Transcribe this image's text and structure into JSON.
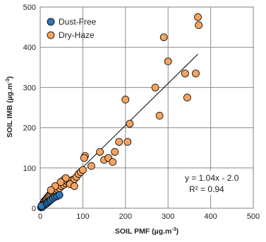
{
  "chart_data": {
    "type": "scatter",
    "xlabel": "SOIL PMF (µg.m",
    "xlabel_sup": "-3",
    "xlabel_end": ")",
    "ylabel": "SOIL IMB (µg.m",
    "ylabel_sup": "-3",
    "ylabel_end": ")",
    "xlim": [
      0,
      500
    ],
    "ylim": [
      0,
      500
    ],
    "xticks": [
      0,
      100,
      200,
      300,
      400,
      500
    ],
    "yticks": [
      0,
      100,
      200,
      300,
      400,
      500
    ],
    "grid": true,
    "legend_position": "top-left",
    "series": [
      {
        "name": "Dust-Free",
        "color": "#2E75B6",
        "points": [
          [
            2,
            2
          ],
          [
            4,
            4
          ],
          [
            6,
            5
          ],
          [
            8,
            7
          ],
          [
            10,
            9
          ],
          [
            12,
            10
          ],
          [
            5,
            3
          ],
          [
            3,
            6
          ],
          [
            15,
            12
          ],
          [
            18,
            15
          ],
          [
            22,
            18
          ],
          [
            25,
            21
          ],
          [
            30,
            25
          ],
          [
            35,
            28
          ],
          [
            40,
            30
          ],
          [
            45,
            33
          ]
        ]
      },
      {
        "name": "Dry-Haze",
        "color": "#F4A460",
        "points": [
          [
            3,
            5
          ],
          [
            5,
            8
          ],
          [
            7,
            12
          ],
          [
            9,
            15
          ],
          [
            10,
            18
          ],
          [
            12,
            20
          ],
          [
            14,
            22
          ],
          [
            16,
            25
          ],
          [
            18,
            28
          ],
          [
            20,
            30
          ],
          [
            22,
            33
          ],
          [
            25,
            35
          ],
          [
            28,
            38
          ],
          [
            30,
            40
          ],
          [
            33,
            42
          ],
          [
            36,
            45
          ],
          [
            40,
            48
          ],
          [
            45,
            50
          ],
          [
            50,
            55
          ],
          [
            55,
            58
          ],
          [
            60,
            62
          ],
          [
            65,
            65
          ],
          [
            70,
            68
          ],
          [
            75,
            70
          ],
          [
            80,
            72
          ],
          [
            85,
            78
          ],
          [
            90,
            85
          ],
          [
            95,
            90
          ],
          [
            100,
            95
          ],
          [
            105,
            130
          ],
          [
            103,
            125
          ],
          [
            120,
            105
          ],
          [
            140,
            140
          ],
          [
            150,
            120
          ],
          [
            160,
            125
          ],
          [
            170,
            115
          ],
          [
            175,
            140
          ],
          [
            185,
            165
          ],
          [
            200,
            270
          ],
          [
            205,
            165
          ],
          [
            210,
            210
          ],
          [
            270,
            300
          ],
          [
            280,
            230
          ],
          [
            290,
            425
          ],
          [
            300,
            365
          ],
          [
            340,
            335
          ],
          [
            345,
            275
          ],
          [
            365,
            335
          ],
          [
            370,
            475
          ],
          [
            372,
            455
          ],
          [
            55,
            70
          ],
          [
            70,
            60
          ],
          [
            80,
            55
          ],
          [
            60,
            75
          ],
          [
            48,
            65
          ],
          [
            35,
            55
          ],
          [
            25,
            45
          ]
        ]
      }
    ],
    "trendline": {
      "slope": 1.04,
      "intercept": -2.0,
      "x_range": [
        0,
        370
      ]
    },
    "annotation": {
      "equation": "y = 1.04x - 2.0",
      "r2": "R² = 0.94"
    }
  }
}
